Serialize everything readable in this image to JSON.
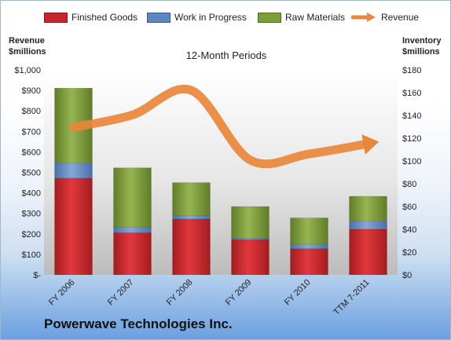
{
  "legend": {
    "finished_goods": "Finished Goods",
    "wip": "Work in Progress",
    "raw": "Raw Materials",
    "revenue": "Revenue"
  },
  "axis_titles": {
    "left_line1": "Revenue",
    "left_line2": "$millions",
    "right_line1": "Inventory",
    "right_line2": "$millions"
  },
  "period_label": "12-Month Periods",
  "company": "Powerwave Technologies Inc.",
  "colors": {
    "finished_goods": "#c8262b",
    "wip": "#5c87c5",
    "raw": "#7d9c3a",
    "revenue": "#e8873a"
  },
  "chart_data": {
    "type": "bar",
    "stacked": true,
    "categories": [
      "FY 2006",
      "FY 2007",
      "FY 2008",
      "FY 2009",
      "FY 2010",
      "TTM 7-2011"
    ],
    "series": [
      {
        "name": "Finished Goods",
        "axis": "right",
        "values": [
          85,
          37,
          49,
          31,
          23,
          40
        ]
      },
      {
        "name": "Work in Progress",
        "axis": "right",
        "values": [
          13,
          5,
          3,
          1,
          4,
          7
        ]
      },
      {
        "name": "Raw Materials",
        "axis": "right",
        "values": [
          66,
          52,
          29,
          28,
          23,
          22
        ]
      },
      {
        "name": "Revenue",
        "axis": "left",
        "type": "line",
        "values": [
          720,
          780,
          900,
          560,
          590,
          640
        ]
      }
    ],
    "left_axis": {
      "label": "Revenue $millions",
      "range": [
        0,
        1000
      ],
      "ticks": [
        "$-",
        "$100",
        "$200",
        "$300",
        "$400",
        "$500",
        "$600",
        "$700",
        "$800",
        "$900",
        "$1,000"
      ]
    },
    "right_axis": {
      "label": "Inventory $millions",
      "range": [
        0,
        180
      ],
      "ticks": [
        "$0",
        "$20",
        "$40",
        "$60",
        "$80",
        "$100",
        "$120",
        "$140",
        "$160",
        "$180"
      ]
    },
    "grid": false,
    "legend_position": "top"
  }
}
